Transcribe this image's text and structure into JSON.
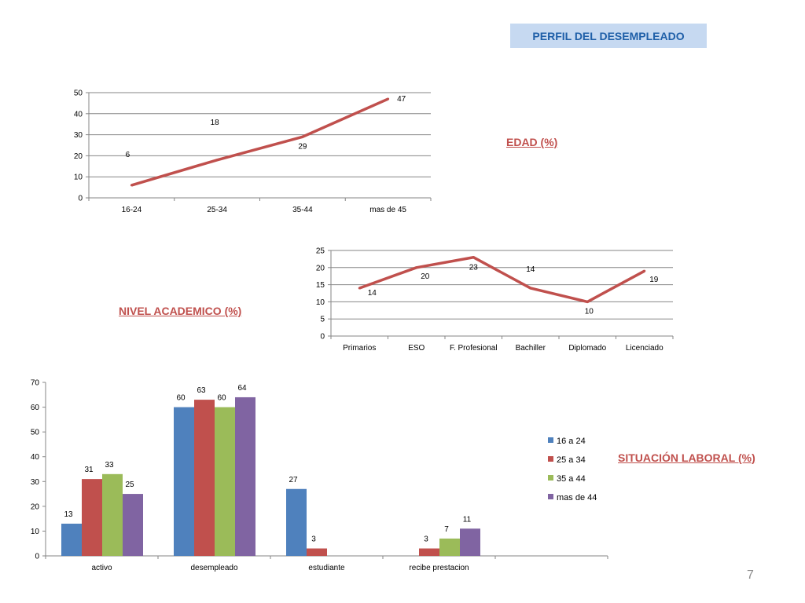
{
  "title": "PERFIL DEL DESEMPLEADO",
  "labels": {
    "edad": "EDAD (%)",
    "nivel": "NIVEL ACADEMICO (%)",
    "situacion": "SITUACIÓN LABORAL (%)"
  },
  "page_number": "7",
  "colors": {
    "line": "#c0504d",
    "grid": "#868686",
    "series": [
      "#4f81bd",
      "#c0504d",
      "#9bbb59",
      "#8064a2"
    ]
  },
  "chart_data": [
    {
      "type": "line",
      "title": "",
      "categories": [
        "16-24",
        "25-34",
        "35-44",
        "mas de 45"
      ],
      "values": [
        6,
        18,
        29,
        47
      ],
      "ylim": [
        0,
        50
      ],
      "yticks": [
        0,
        10,
        20,
        30,
        40,
        50
      ],
      "grid": true
    },
    {
      "type": "line",
      "title": "",
      "categories": [
        "Primarios",
        "ESO",
        "F. Profesional",
        "Bachiller",
        "Diplomado",
        "Licenciado"
      ],
      "values": [
        14,
        20,
        23,
        14,
        10,
        19
      ],
      "ylim": [
        0,
        25
      ],
      "yticks": [
        0,
        5,
        10,
        15,
        20,
        25
      ],
      "grid": true
    },
    {
      "type": "bar",
      "title": "",
      "categories": [
        "activo",
        "desempleado",
        "estudiante",
        "recibe prestacion",
        ""
      ],
      "series": [
        {
          "name": "16 a 24",
          "values": [
            13,
            60,
            27,
            null,
            null
          ]
        },
        {
          "name": "25 a 34",
          "values": [
            31,
            63,
            3,
            3,
            null
          ]
        },
        {
          "name": "35 a 44",
          "values": [
            33,
            60,
            null,
            7,
            null
          ]
        },
        {
          "name": "mas de 44",
          "values": [
            25,
            64,
            null,
            11,
            null
          ]
        }
      ],
      "ylim": [
        0,
        70
      ],
      "yticks": [
        0,
        10,
        20,
        30,
        40,
        50,
        60,
        70
      ],
      "grid": false,
      "legend": "right"
    }
  ]
}
